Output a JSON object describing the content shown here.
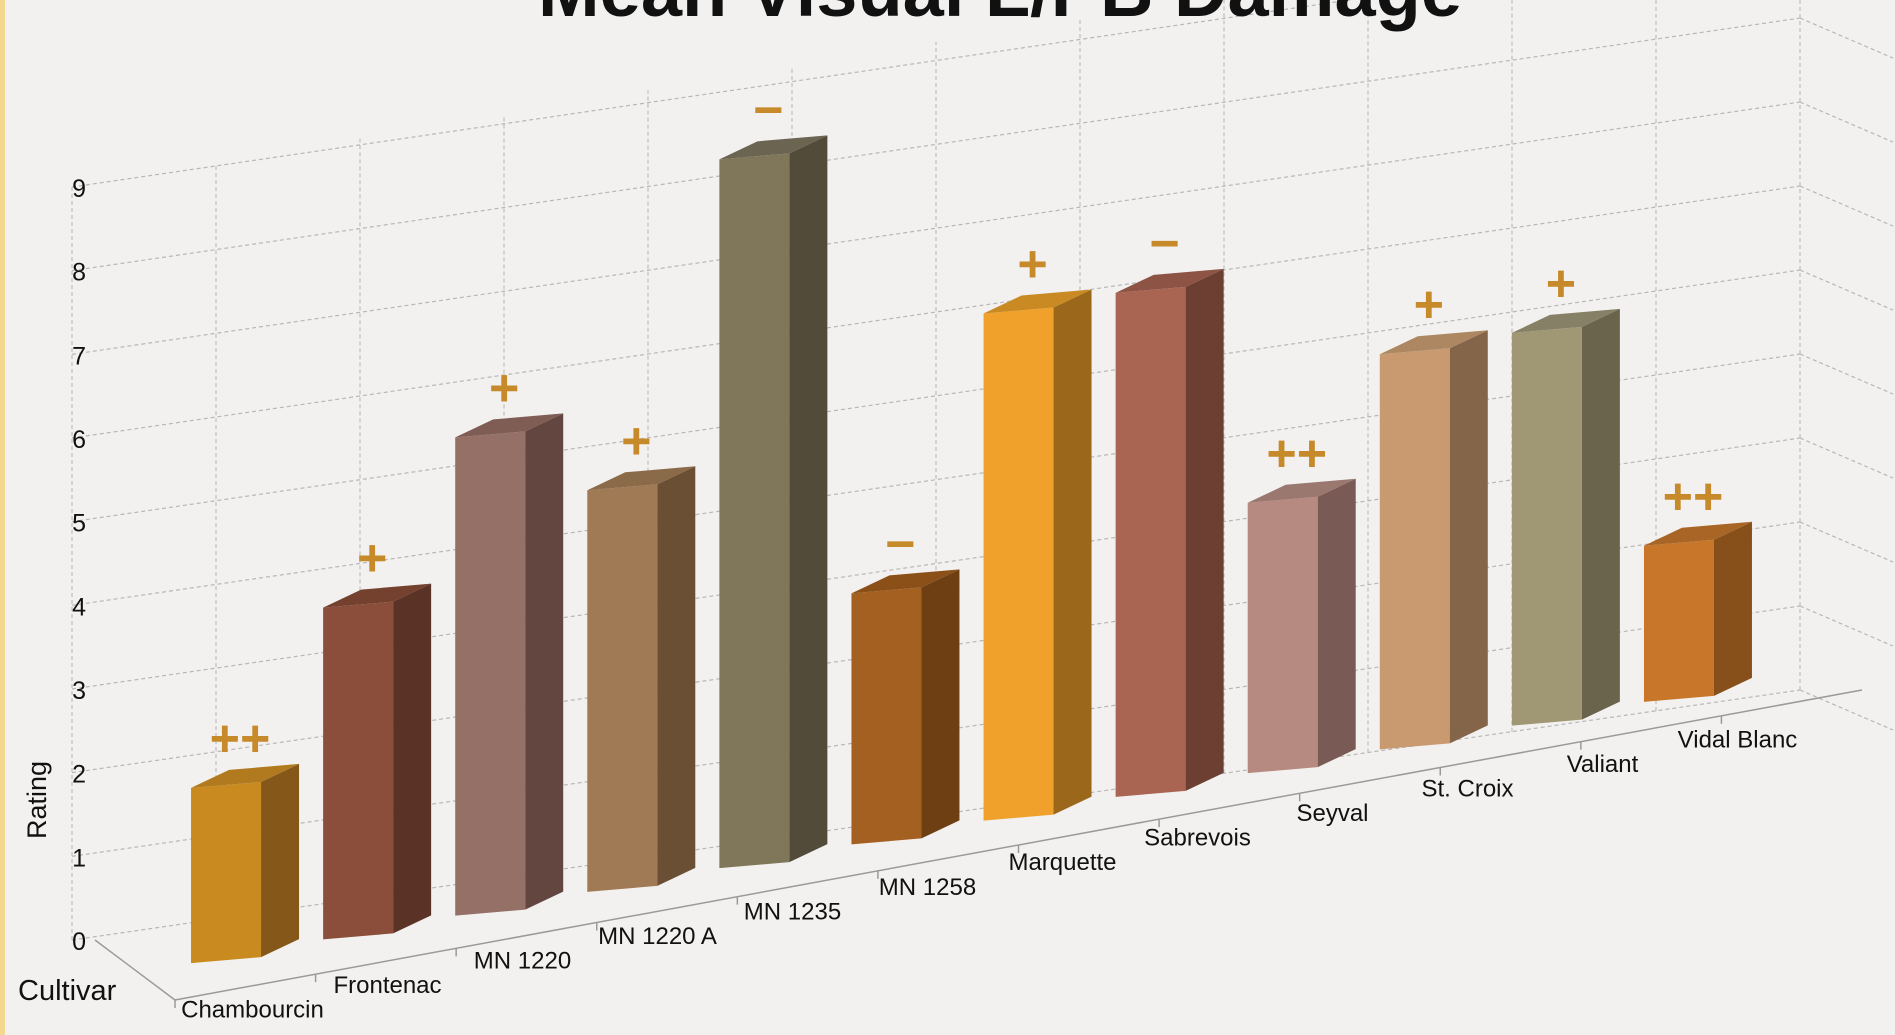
{
  "chart_data": {
    "type": "bar",
    "title": "Mean Visual L/PB Damage",
    "xlabel": "Cultivar",
    "ylabel": "Rating",
    "ylim": [
      0,
      9
    ],
    "yticks": [
      "0",
      "1",
      "2",
      "3",
      "4",
      "5",
      "6",
      "7",
      "8",
      "9"
    ],
    "grid": true,
    "categories": [
      "Chambourcin",
      "Frontenac",
      "MN 1220",
      "MN 1220 A",
      "MN 1235",
      "MN 1258",
      "Marquette",
      "Sabrevois",
      "Seyval",
      "St. Croix",
      "Valiant",
      "Vidal Blanc"
    ],
    "values": [
      2.1,
      4.0,
      5.8,
      4.9,
      8.7,
      3.1,
      6.3,
      6.3,
      3.4,
      5.0,
      5.0,
      2.0
    ],
    "annotations": [
      "++",
      "+",
      "+",
      "+",
      "−",
      "−",
      "+",
      "−",
      "++",
      "+",
      "+",
      "++"
    ],
    "colors": {
      "front": [
        "#c98a20",
        "#8b4e3b",
        "#957066",
        "#a07a54",
        "#80775b",
        "#a46020",
        "#f0a12c",
        "#a96452",
        "#b68a80",
        "#c99a6f",
        "#a09775",
        "#c8762a"
      ],
      "side": [
        "#85581a",
        "#5a3226",
        "#644640",
        "#6a4f35",
        "#524b3a",
        "#6d3f13",
        "#9b671a",
        "#6c3f32",
        "#7a5a54",
        "#856549",
        "#6a644d",
        "#87501b"
      ],
      "top": [
        "#b27a1f",
        "#74412f",
        "#7f5d55",
        "#8b6a49",
        "#6b6450",
        "#8a5018",
        "#c98a23",
        "#8d5344",
        "#9a7870",
        "#ad8762",
        "#868066",
        "#a86526"
      ],
      "annotation": "#c78a2a"
    }
  }
}
